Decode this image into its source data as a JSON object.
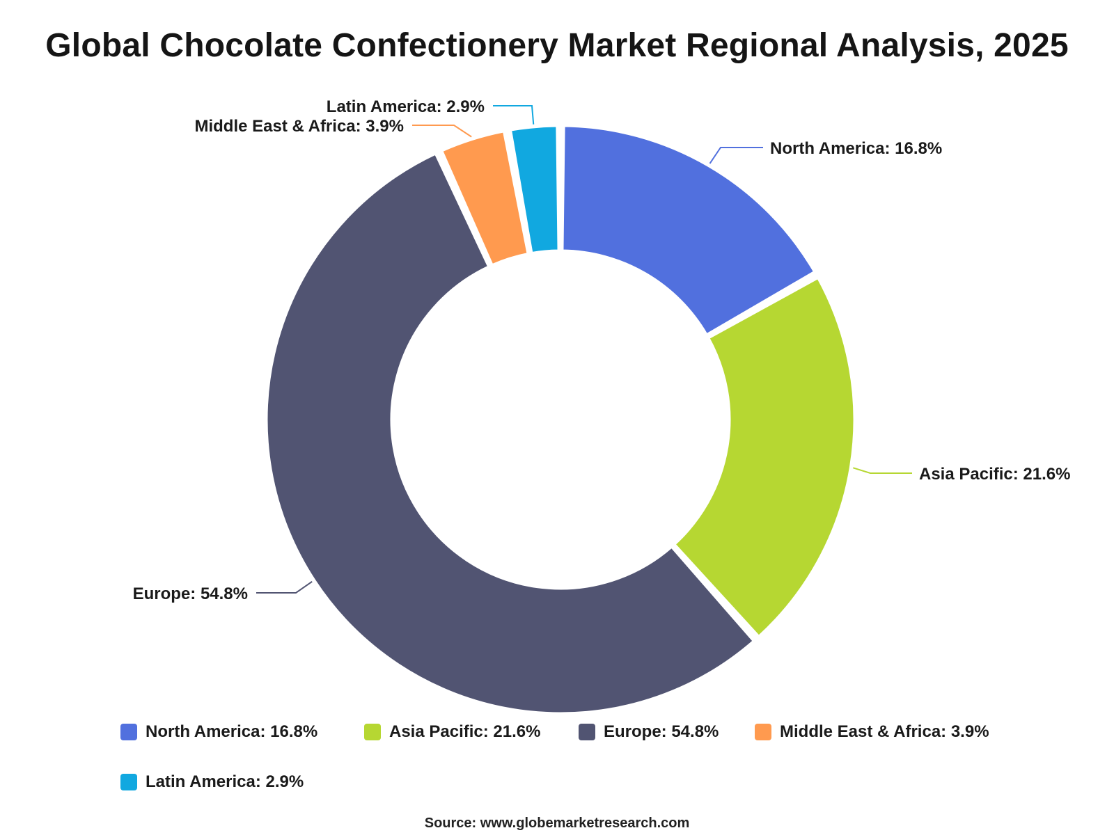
{
  "chart_data": {
    "type": "pie",
    "variant": "donut",
    "title": "Global Chocolate Confectionery Market Regional Analysis, 2025",
    "categories": [
      "North America",
      "Asia Pacific",
      "Europe",
      "Middle East & Africa",
      "Latin America"
    ],
    "values": [
      16.8,
      21.6,
      54.8,
      3.9,
      2.9
    ],
    "unit": "%",
    "colors": [
      "#5170DE",
      "#B6D732",
      "#515472",
      "#FF9A4F",
      "#11A8E0"
    ],
    "slice_labels": [
      "North America: 16.8%",
      "Asia Pacific: 21.6%",
      "Europe: 54.8%",
      "Middle East & Africa: 3.9%",
      "Latin America: 2.9%"
    ],
    "legend": {
      "placement": "bottom",
      "entries": [
        "North America: 16.8%",
        "Asia Pacific: 21.6%",
        "Europe: 54.8%",
        "Middle East & Africa: 3.9%",
        "Latin America: 2.9%"
      ]
    },
    "source": "Source: www.globemarketresearch.com"
  }
}
